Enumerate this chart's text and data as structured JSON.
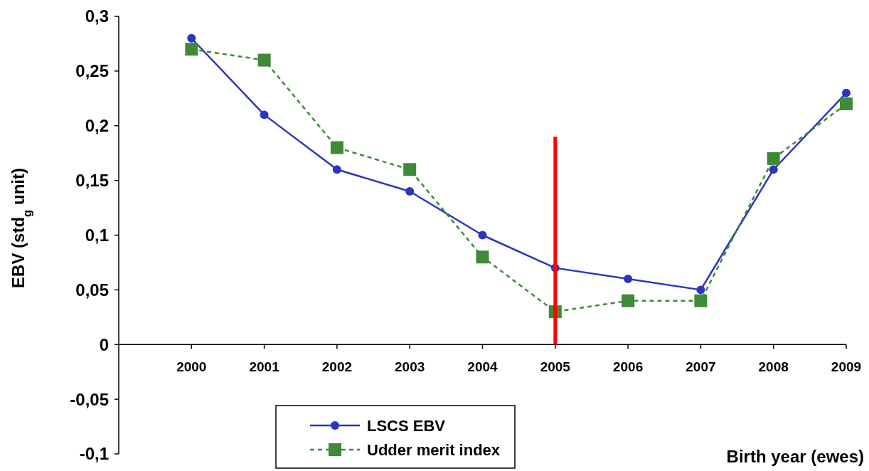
{
  "chart_data": {
    "type": "line",
    "xlabel": "Birth year (ewes)",
    "ylabel": "EBV (std$_{g}$ unit)",
    "x": [
      2000,
      2001,
      2002,
      2003,
      2004,
      2005,
      2006,
      2007,
      2008,
      2009
    ],
    "xlim": [
      1999,
      2009
    ],
    "xticks": [
      2000,
      2001,
      2002,
      2003,
      2004,
      2005,
      2006,
      2007,
      2008,
      2009
    ],
    "ylim": [
      -0.1,
      0.3
    ],
    "yticks": [
      {
        "value": -0.1,
        "label": "-0,1"
      },
      {
        "value": -0.05,
        "label": "-0,05"
      },
      {
        "value": 0,
        "label": "0"
      },
      {
        "value": 0.05,
        "label": "0,05"
      },
      {
        "value": 0.1,
        "label": "0,1"
      },
      {
        "value": 0.15,
        "label": "0,15"
      },
      {
        "value": 0.2,
        "label": "0,2"
      },
      {
        "value": 0.25,
        "label": "0,25"
      },
      {
        "value": 0.3,
        "label": "0,3"
      }
    ],
    "series": [
      {
        "name": "LSCS EBV",
        "color": "#2b35c0",
        "marker": "circle",
        "line_style": "solid",
        "values": [
          0.28,
          0.21,
          0.16,
          0.14,
          0.1,
          0.07,
          0.06,
          0.05,
          0.16,
          0.23
        ]
      },
      {
        "name": "Udder merit index",
        "color": "#3f8a37",
        "marker": "square",
        "line_style": "dashed",
        "values": [
          0.27,
          0.26,
          0.18,
          0.16,
          0.08,
          0.03,
          0.04,
          0.04,
          0.17,
          0.22
        ]
      },
      {
        "color": "#ff0000",
        "marker": "none",
        "line_style": "solid",
        "x": [
          2005,
          2005
        ],
        "values": [
          0,
          0.19
        ]
      }
    ],
    "grid": false,
    "legend": "bottom"
  }
}
